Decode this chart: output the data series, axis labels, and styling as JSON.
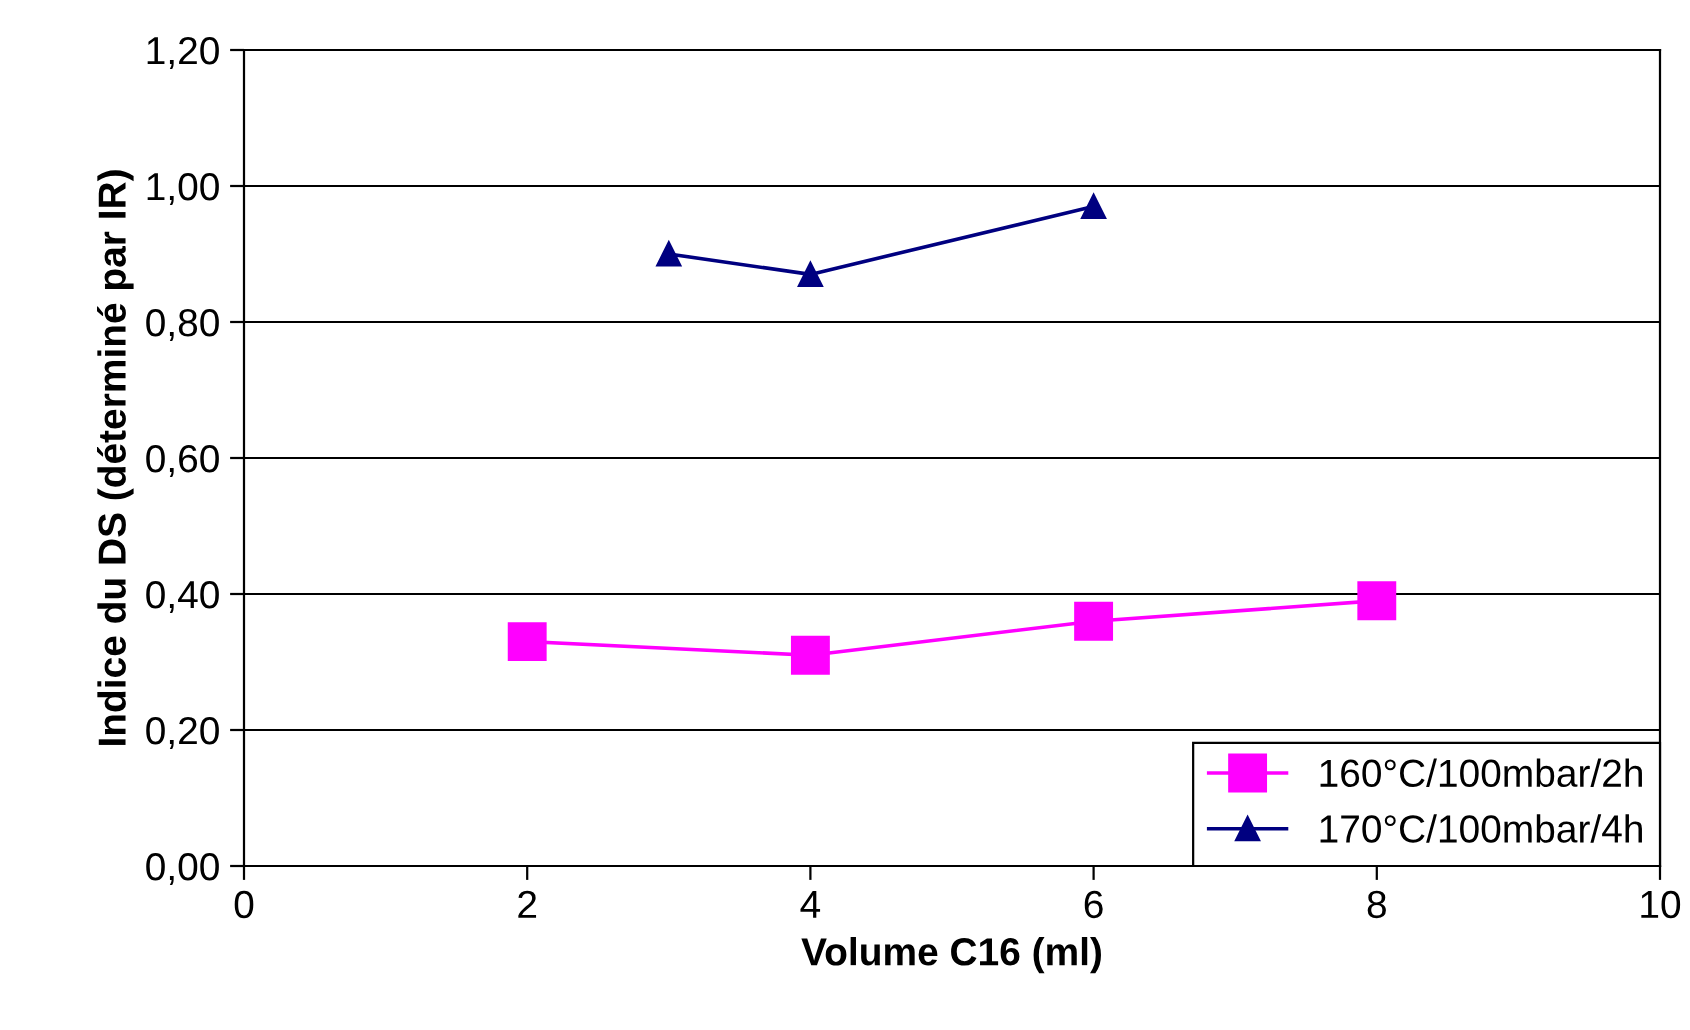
{
  "chart_data": {
    "type": "line",
    "xlabel": "Volume C16 (ml)",
    "ylabel": "Indice du DS (déterminé par IR)",
    "series": [
      {
        "name": "160°C/100mbar/2h",
        "color": "#ff00ff",
        "x": [
          2,
          4,
          6,
          8
        ],
        "values": [
          0.33,
          0.31,
          0.36,
          0.39
        ],
        "marker": "square"
      },
      {
        "name": "170°C/100mbar/4h",
        "color": "#000080",
        "x": [
          3,
          4,
          6
        ],
        "values": [
          0.9,
          0.87,
          0.97
        ],
        "marker": "triangle"
      }
    ],
    "xlim": [
      0,
      10
    ],
    "xticks": [
      0,
      2,
      4,
      6,
      8,
      10
    ],
    "ylim": [
      0,
      1.2
    ],
    "yticks": [
      {
        "value": 0,
        "label": "0,00"
      },
      {
        "value": 0.2,
        "label": "0,20"
      },
      {
        "value": 0.4,
        "label": "0,40"
      },
      {
        "value": 0.6,
        "label": "0,60"
      },
      {
        "value": 0.8,
        "label": "0,80"
      },
      {
        "value": 1.0,
        "label": "1,00"
      },
      {
        "value": 1.2,
        "label": "1,20"
      }
    ],
    "grid": "y",
    "legend": "bottom right",
    "line_style": "solid"
  }
}
